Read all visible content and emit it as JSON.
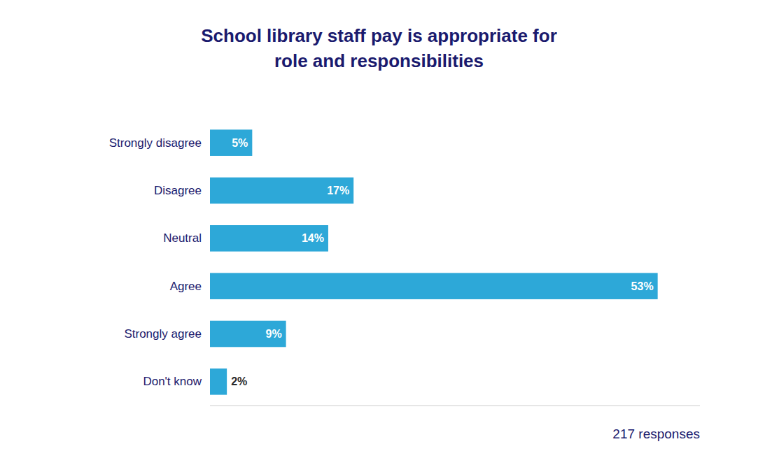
{
  "chart_data": {
    "type": "bar",
    "orientation": "horizontal",
    "title": "School library staff pay is appropriate for\nrole and responsibilities",
    "categories": [
      "Strongly disagree",
      "Disagree",
      "Neutral",
      "Agree",
      "Strongly agree",
      "Don't know"
    ],
    "values": [
      5,
      17,
      14,
      53,
      9,
      2
    ],
    "value_labels": [
      "5%",
      "17%",
      "14%",
      "53%",
      "9%",
      "2%"
    ],
    "data_labels": true,
    "color": "#2da8d8",
    "xlim": [
      0,
      58
    ],
    "tick_labels": "y",
    "grid": false,
    "annotations": [
      "217 responses"
    ]
  }
}
